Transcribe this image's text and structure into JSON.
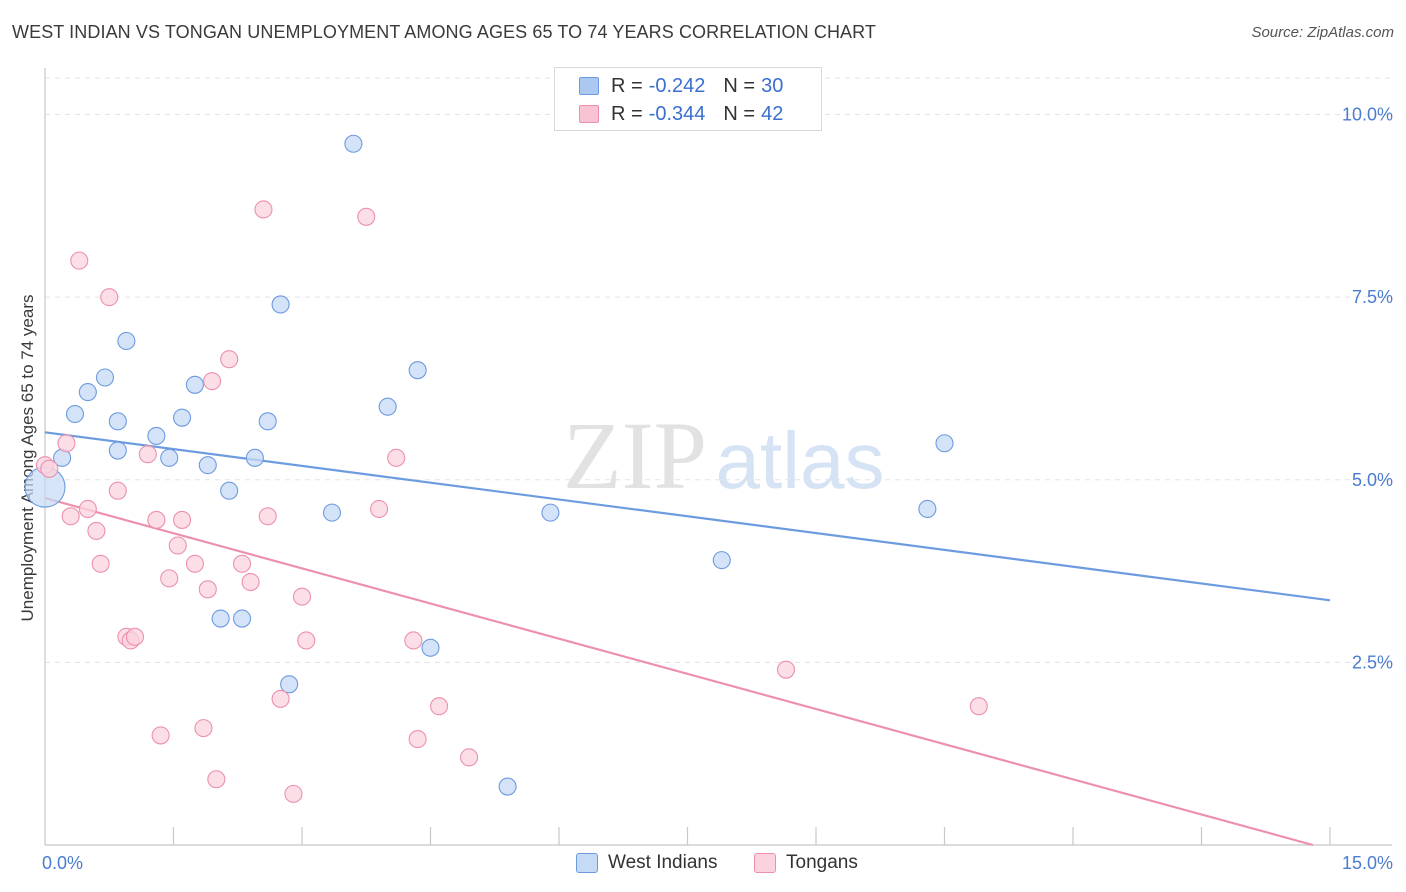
{
  "title": "WEST INDIAN VS TONGAN UNEMPLOYMENT AMONG AGES 65 TO 74 YEARS CORRELATION CHART",
  "source": "Source: ZipAtlas.com",
  "watermark": {
    "zip": "ZIP",
    "atlas": "atlas"
  },
  "legend": {
    "r_label": "R =",
    "n_label": "N =",
    "rows": [
      {
        "r": "-0.242",
        "n": "30",
        "color": "#aac8f0",
        "border": "#6d9be0"
      },
      {
        "r": "-0.344",
        "n": "42",
        "color": "#f8c3d3",
        "border": "#ec90ad"
      }
    ]
  },
  "bottom_legend": [
    {
      "label": "West Indians",
      "color": "#c5daf5",
      "border": "#6d9be0"
    },
    {
      "label": "Tongans",
      "color": "#fbd3df",
      "border": "#ec90ad"
    }
  ],
  "chart_data": {
    "type": "scatter",
    "title": "WEST INDIAN VS TONGAN UNEMPLOYMENT AMONG AGES 65 TO 74 YEARS CORRELATION CHART",
    "xlabel": "",
    "ylabel": "Unemployment Among Ages 65 to 74 years",
    "xlim": [
      0,
      15
    ],
    "ylim": [
      0,
      10.5
    ],
    "x_tick_labels": [
      {
        "value": 0,
        "label": "0.0%"
      },
      {
        "value": 15,
        "label": "15.0%"
      }
    ],
    "y_tick_labels": [
      {
        "value": 2.5,
        "label": "2.5%"
      },
      {
        "value": 5.0,
        "label": "5.0%"
      },
      {
        "value": 7.5,
        "label": "7.5%"
      },
      {
        "value": 10.0,
        "label": "10.0%"
      }
    ],
    "x_minor_ticks": [
      1.5,
      3.0,
      4.5,
      6.0,
      7.5,
      9.0,
      10.5,
      12.0,
      13.5
    ],
    "grid": true,
    "series": [
      {
        "name": "West Indians",
        "color": "#6d9be0",
        "fill": "#c5daf5",
        "points": [
          [
            0.0,
            4.9
          ],
          [
            0.2,
            5.3
          ],
          [
            0.35,
            5.9
          ],
          [
            0.5,
            6.2
          ],
          [
            0.7,
            6.4
          ],
          [
            0.85,
            5.8
          ],
          [
            0.95,
            6.9
          ],
          [
            1.3,
            5.6
          ],
          [
            1.45,
            5.3
          ],
          [
            1.6,
            5.85
          ],
          [
            1.75,
            6.3
          ],
          [
            1.9,
            5.2
          ],
          [
            0.85,
            5.4
          ],
          [
            2.15,
            4.85
          ],
          [
            2.05,
            3.1
          ],
          [
            2.3,
            3.1
          ],
          [
            2.45,
            5.3
          ],
          [
            2.6,
            5.8
          ],
          [
            2.75,
            7.4
          ],
          [
            2.85,
            2.2
          ],
          [
            3.35,
            4.55
          ],
          [
            3.6,
            9.6
          ],
          [
            4.0,
            6.0
          ],
          [
            4.35,
            6.5
          ],
          [
            4.5,
            2.7
          ],
          [
            5.4,
            0.8
          ],
          [
            5.9,
            4.55
          ],
          [
            7.9,
            3.9
          ],
          [
            10.3,
            4.6
          ],
          [
            10.5,
            5.5
          ]
        ],
        "trend": {
          "x": [
            0,
            15
          ],
          "y": [
            5.65,
            3.35
          ]
        }
      },
      {
        "name": "Tongans",
        "color": "#ec90ad",
        "fill": "#fbd3df",
        "points": [
          [
            0.0,
            5.2
          ],
          [
            0.05,
            5.15
          ],
          [
            0.25,
            5.5
          ],
          [
            0.3,
            4.5
          ],
          [
            0.4,
            8.0
          ],
          [
            0.5,
            4.6
          ],
          [
            0.6,
            4.3
          ],
          [
            0.65,
            3.85
          ],
          [
            0.75,
            7.5
          ],
          [
            0.85,
            4.85
          ],
          [
            0.95,
            2.85
          ],
          [
            1.0,
            2.8
          ],
          [
            1.05,
            2.85
          ],
          [
            1.2,
            5.35
          ],
          [
            1.3,
            4.45
          ],
          [
            1.35,
            1.5
          ],
          [
            1.45,
            3.65
          ],
          [
            1.55,
            4.1
          ],
          [
            1.6,
            4.45
          ],
          [
            1.75,
            3.85
          ],
          [
            1.85,
            1.6
          ],
          [
            1.9,
            3.5
          ],
          [
            1.95,
            6.35
          ],
          [
            2.0,
            0.9
          ],
          [
            2.15,
            6.65
          ],
          [
            2.3,
            3.85
          ],
          [
            2.4,
            3.6
          ],
          [
            2.55,
            8.7
          ],
          [
            2.6,
            4.5
          ],
          [
            2.75,
            2.0
          ],
          [
            2.9,
            0.7
          ],
          [
            3.0,
            3.4
          ],
          [
            3.05,
            2.8
          ],
          [
            3.75,
            8.6
          ],
          [
            3.9,
            4.6
          ],
          [
            4.1,
            5.3
          ],
          [
            4.3,
            2.8
          ],
          [
            4.35,
            1.45
          ],
          [
            4.6,
            1.9
          ],
          [
            4.95,
            1.2
          ],
          [
            8.65,
            2.4
          ],
          [
            10.9,
            1.9
          ]
        ],
        "trend": {
          "x": [
            0,
            14.8
          ],
          "y": [
            4.75,
            0.0
          ]
        }
      }
    ]
  }
}
